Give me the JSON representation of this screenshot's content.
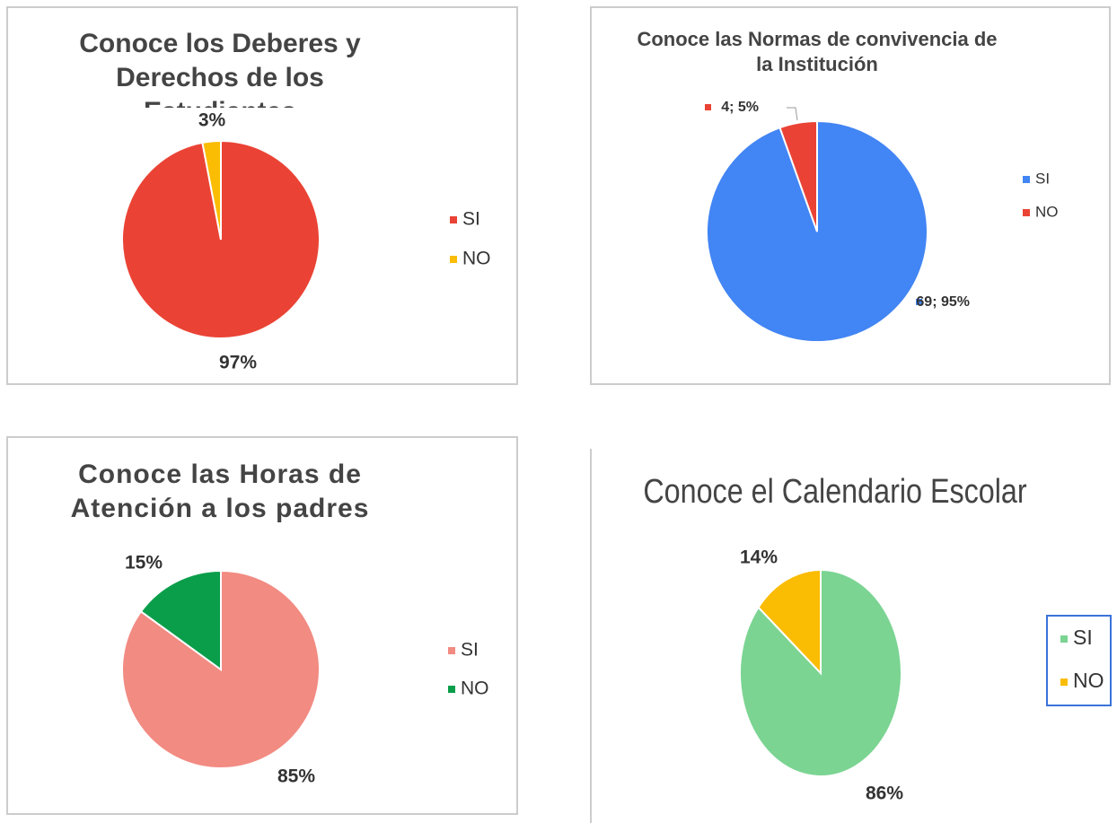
{
  "chart_data": [
    {
      "type": "pie",
      "title": "Conoce los Deberes y Derechos de los Estudiantes",
      "categories": [
        "SI",
        "NO"
      ],
      "values": [
        97,
        3
      ],
      "value_labels": [
        "97%",
        "3%"
      ],
      "colors": [
        "#ea4335",
        "#fbbc04"
      ],
      "legend": "right"
    },
    {
      "type": "pie",
      "title": "Conoce las Normas de convivencia de la Institución",
      "categories": [
        "SI",
        "NO"
      ],
      "values": [
        69,
        4
      ],
      "value_labels": [
        "69; 95%",
        "4; 5%"
      ],
      "colors": [
        "#4285f4",
        "#ea4335"
      ],
      "legend": "right"
    },
    {
      "type": "pie",
      "title": "Conoce las Horas de Atención a los padres",
      "categories": [
        "SI",
        "NO"
      ],
      "values": [
        85,
        15
      ],
      "value_labels": [
        "85%",
        "15%"
      ],
      "colors": [
        "#f28b82",
        "#0a9e4a"
      ],
      "legend": "right"
    },
    {
      "type": "pie",
      "title": "Conoce el Calendario Escolar",
      "categories": [
        "SI",
        "NO"
      ],
      "values": [
        86,
        14
      ],
      "value_labels": [
        "86%",
        "14%"
      ],
      "colors": [
        "#7bd492",
        "#fbbc04"
      ],
      "legend": "right"
    }
  ]
}
